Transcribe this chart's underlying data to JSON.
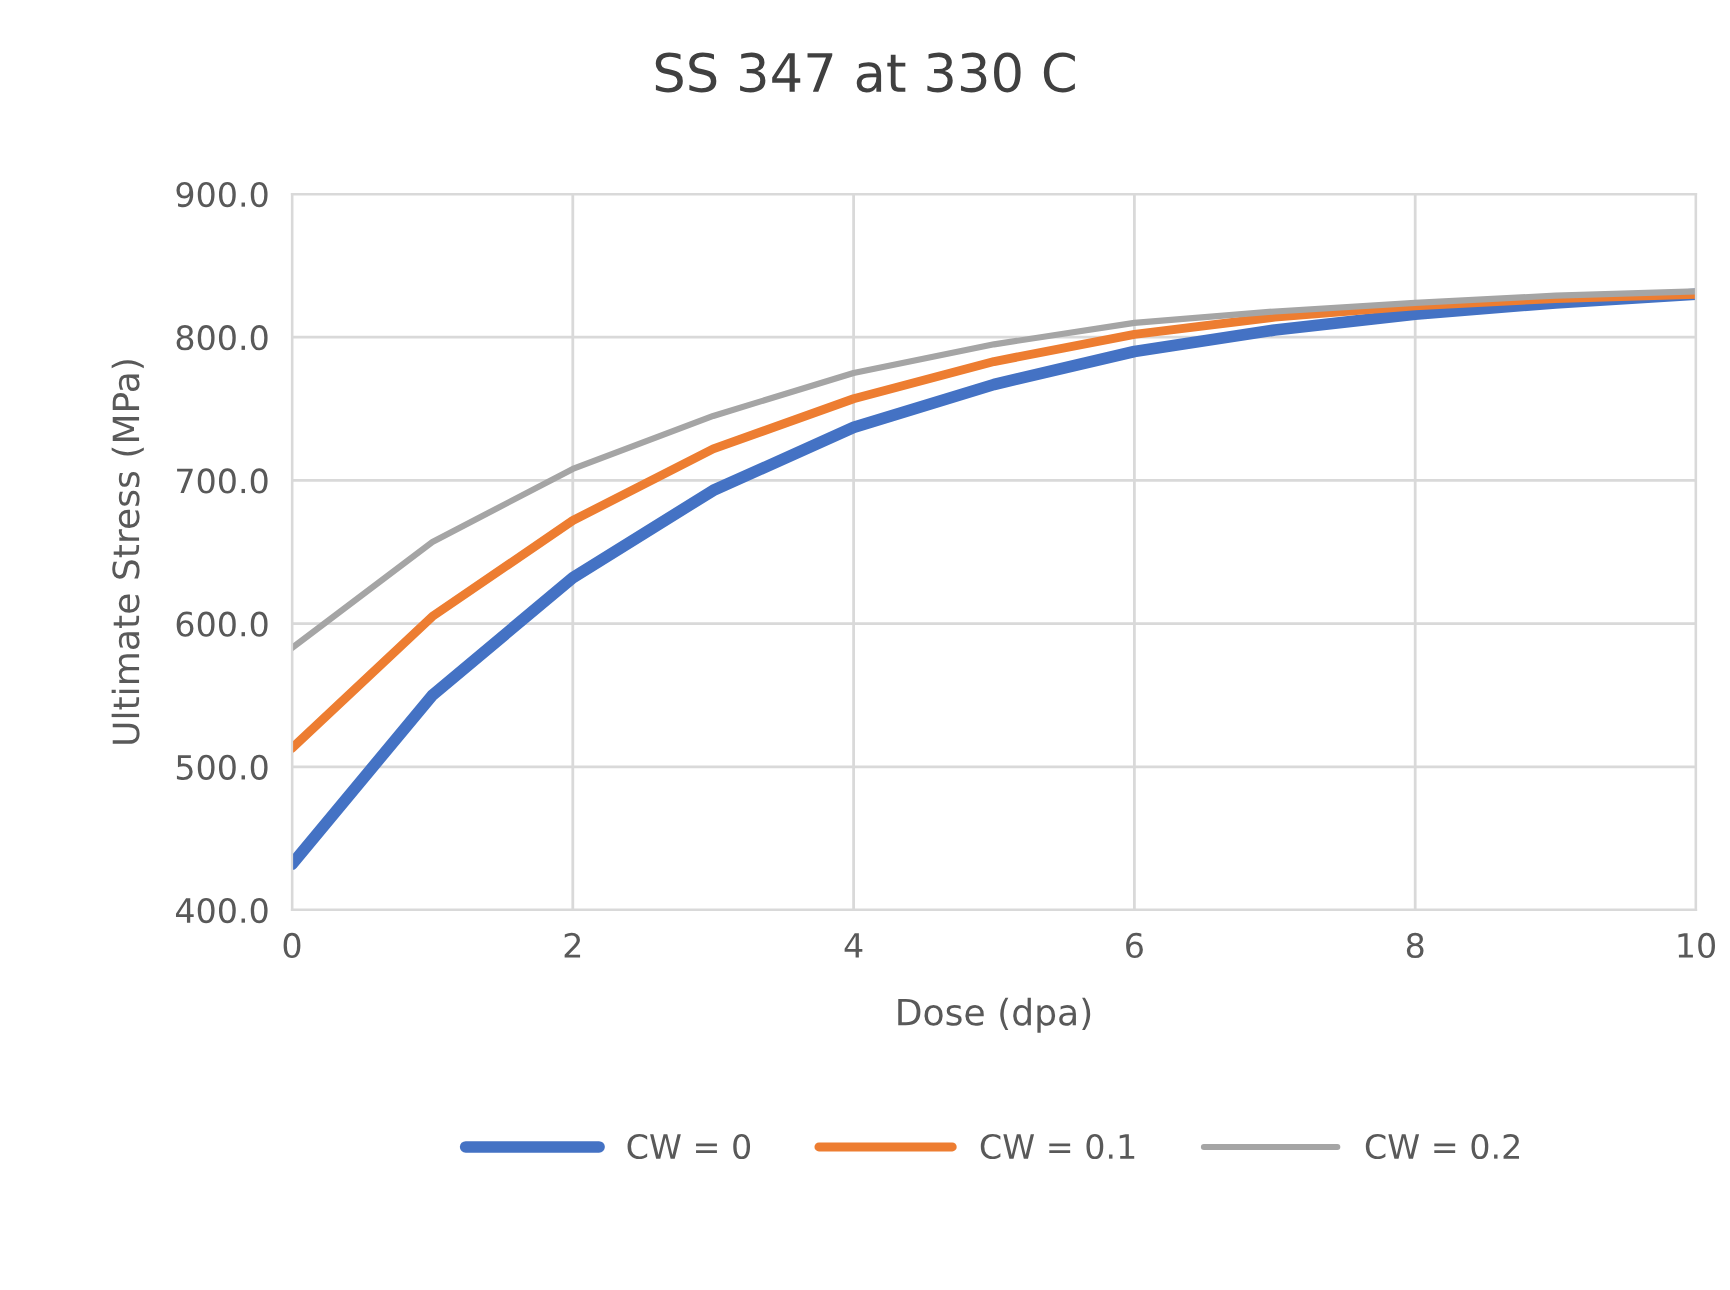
{
  "chart_data": {
    "type": "line",
    "title": "SS 347 at 330 C",
    "xlabel": "Dose (dpa)",
    "ylabel": "Ultimate Stress (MPa)",
    "x": [
      0,
      1,
      2,
      3,
      4,
      5,
      6,
      7,
      8,
      9,
      10
    ],
    "series": [
      {
        "name": "CW = 0",
        "color": "#4472c4",
        "values": [
          432,
          550,
          632,
          693,
          737,
          767,
          790,
          805,
          816,
          824,
          830
        ]
      },
      {
        "name": "CW = 0.1",
        "color": "#ed7d31",
        "values": [
          513,
          605,
          672,
          722,
          757,
          783,
          802,
          814,
          822,
          827,
          830
        ]
      },
      {
        "name": "CW = 0.2",
        "color": "#a5a5a5",
        "values": [
          583,
          657,
          708,
          745,
          775,
          795,
          810,
          818,
          824,
          829,
          832
        ]
      }
    ],
    "xlim": [
      0,
      10
    ],
    "xticks": [
      0,
      2,
      4,
      6,
      8,
      10
    ],
    "ylim": [
      400,
      900
    ],
    "yticks": [
      {
        "value": 400,
        "label": "400.0"
      },
      {
        "value": 500,
        "label": "500.0"
      },
      {
        "value": 600,
        "label": "600.0"
      },
      {
        "value": 700,
        "label": "700.0"
      },
      {
        "value": 800,
        "label": "800.0"
      },
      {
        "value": 900,
        "label": "900.0"
      }
    ],
    "grid": true,
    "legend": "bottom",
    "marker": "none",
    "line_style": "solid"
  }
}
